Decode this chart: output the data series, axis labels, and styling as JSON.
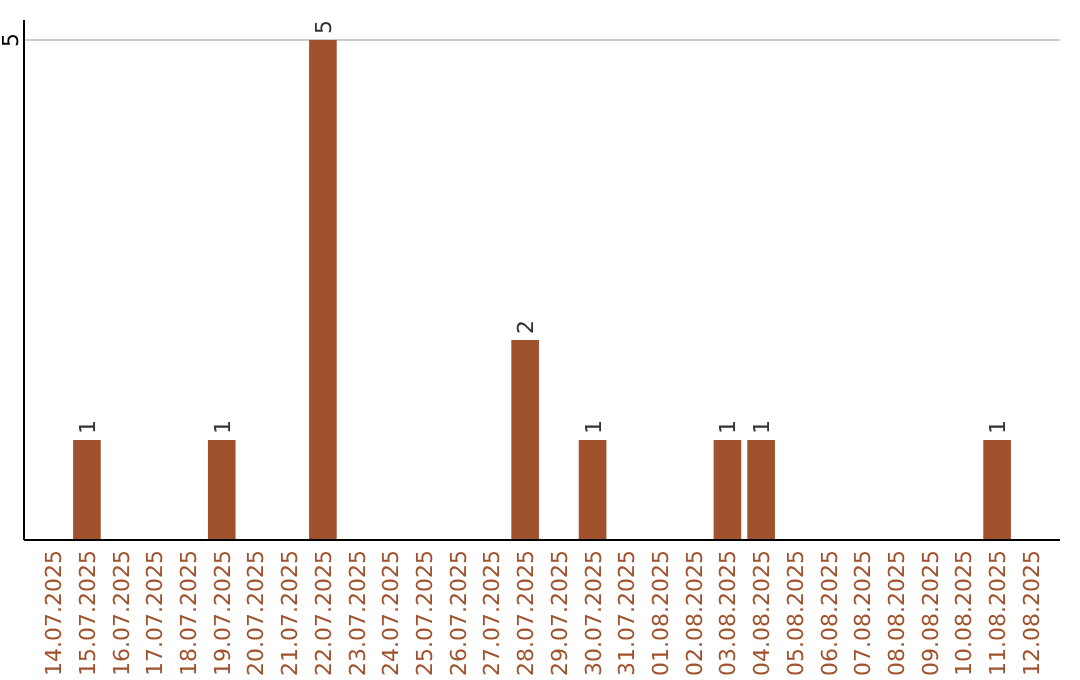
{
  "chart_data": {
    "type": "bar",
    "categories": [
      "14.07.2025",
      "15.07.2025",
      "16.07.2025",
      "17.07.2025",
      "18.07.2025",
      "19.07.2025",
      "20.07.2025",
      "21.07.2025",
      "22.07.2025",
      "23.07.2025",
      "24.07.2025",
      "25.07.2025",
      "26.07.2025",
      "27.07.2025",
      "28.07.2025",
      "29.07.2025",
      "30.07.2025",
      "31.07.2025",
      "01.08.2025",
      "02.08.2025",
      "03.08.2025",
      "04.08.2025",
      "05.08.2025",
      "06.08.2025",
      "07.08.2025",
      "08.08.2025",
      "09.08.2025",
      "10.08.2025",
      "11.08.2025",
      "12.08.2025"
    ],
    "values": [
      0,
      1,
      0,
      0,
      0,
      1,
      0,
      0,
      5,
      0,
      0,
      0,
      0,
      0,
      2,
      0,
      1,
      0,
      0,
      0,
      1,
      1,
      0,
      0,
      0,
      0,
      0,
      0,
      1,
      0
    ],
    "value_labels": [
      null,
      "1",
      null,
      null,
      null,
      "1",
      null,
      null,
      "5",
      null,
      null,
      null,
      null,
      null,
      "2",
      null,
      "1",
      null,
      null,
      null,
      "1",
      "1",
      null,
      null,
      null,
      null,
      null,
      null,
      "1",
      null
    ],
    "color": "#a0522d",
    "ylim": [
      0,
      5
    ],
    "yticks": [
      5
    ],
    "ref_lines": [
      {
        "axis": "y",
        "value": 5,
        "color": "#cccccc"
      }
    ]
  }
}
